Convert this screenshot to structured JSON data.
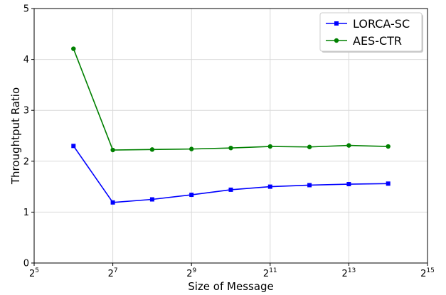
{
  "chart_data": {
    "type": "line",
    "xlabel": "Size of Message",
    "ylabel": "Throughtput Ratio",
    "x_scale": "log2",
    "xlim": [
      32,
      32768
    ],
    "ylim": [
      0,
      5
    ],
    "x_ticks": [
      {
        "value": 32,
        "base": "2",
        "exp": "5"
      },
      {
        "value": 128,
        "base": "2",
        "exp": "7"
      },
      {
        "value": 512,
        "base": "2",
        "exp": "9"
      },
      {
        "value": 2048,
        "base": "2",
        "exp": "11"
      },
      {
        "value": 8192,
        "base": "2",
        "exp": "13"
      },
      {
        "value": 32768,
        "base": "2",
        "exp": "15"
      }
    ],
    "y_ticks": [
      0,
      1,
      2,
      3,
      4,
      5
    ],
    "grid": true,
    "legend_position": "top-right",
    "x": [
      64,
      128,
      256,
      512,
      1024,
      2048,
      4096,
      8192,
      16384
    ],
    "series": [
      {
        "name": "LORCA-SC",
        "color": "#0000ff",
        "marker": "square",
        "values": [
          2.3,
          1.19,
          1.25,
          1.34,
          1.44,
          1.5,
          1.53,
          1.55,
          1.56
        ]
      },
      {
        "name": "AES-CTR",
        "color": "#008000",
        "marker": "circle",
        "values": [
          4.21,
          2.22,
          2.23,
          2.24,
          2.26,
          2.29,
          2.28,
          2.31,
          2.29
        ]
      }
    ]
  }
}
